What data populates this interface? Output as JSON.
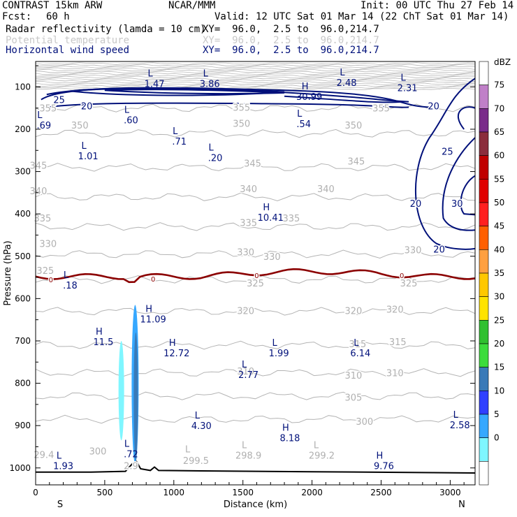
{
  "header": {
    "model": "CONTRAST 15km ARW",
    "org": "NCAR/MMM",
    "init": "Init: 00 UTC Thu 27 Feb 14",
    "fcst_label": "Fcst:",
    "fcst_value": "60 h",
    "valid": "Valid: 12 UTC Sat 01 Mar 14 (22 ChT Sat 01 Mar 14)",
    "fields": [
      {
        "name": "Radar reflectivity (lamda = 10 cm)",
        "xy": "XY=  96.0,  2.5 to  96.0,214.7"
      },
      {
        "name": "Potential temperature",
        "xy": "XY=  96.0,  2.5 to  96.0,214.7"
      },
      {
        "name": "Horizontal wind speed",
        "xy": "XY=  96.0,  2.5 to  96.0,214.7"
      }
    ]
  },
  "chart_data": {
    "type": "cross-section",
    "xlabel": "Distance (km)",
    "ylabel": "Pressure (hPa)",
    "x_ticks": [
      0,
      500,
      1000,
      1500,
      2000,
      2500,
      3000
    ],
    "y_ticks": [
      100,
      200,
      300,
      400,
      500,
      600,
      700,
      800,
      900,
      1000
    ],
    "xlim": [
      0,
      3180
    ],
    "ylim": [
      1040,
      40
    ],
    "x_end_labels": {
      "left": "S",
      "right": "N"
    },
    "theta_levels": [
      {
        "value": 355,
        "p": 150
      },
      {
        "value": 350,
        "p": 210
      },
      {
        "value": 345,
        "p": 290
      },
      {
        "value": 340,
        "p": 360
      },
      {
        "value": 335,
        "p": 430
      },
      {
        "value": 330,
        "p": 495
      },
      {
        "value": 325,
        "p": 555
      },
      {
        "value": 320,
        "p": 630
      },
      {
        "value": 315,
        "p": 710
      },
      {
        "value": 310,
        "p": 775
      },
      {
        "value": 305,
        "p": 830
      },
      {
        "value": 300,
        "p": 885
      }
    ],
    "theta_labels": [
      {
        "text": "355",
        "x": 1490,
        "p": 148
      },
      {
        "text": "355",
        "x": 2500,
        "p": 150
      },
      {
        "text": "355",
        "x": 90,
        "p": 150
      },
      {
        "text": "350",
        "x": 320,
        "p": 190
      },
      {
        "text": "350",
        "x": 1490,
        "p": 186
      },
      {
        "text": "350",
        "x": 2300,
        "p": 190
      },
      {
        "text": "345",
        "x": 20,
        "p": 285
      },
      {
        "text": "345",
        "x": 1570,
        "p": 280
      },
      {
        "text": "345",
        "x": 2320,
        "p": 275
      },
      {
        "text": "340",
        "x": 20,
        "p": 345
      },
      {
        "text": "340",
        "x": 1540,
        "p": 340
      },
      {
        "text": "340",
        "x": 2100,
        "p": 340
      },
      {
        "text": "335",
        "x": 50,
        "p": 410
      },
      {
        "text": "335",
        "x": 1540,
        "p": 420
      },
      {
        "text": "335",
        "x": 1850,
        "p": 410
      },
      {
        "text": "330",
        "x": 90,
        "p": 470
      },
      {
        "text": "330",
        "x": 1520,
        "p": 490
      },
      {
        "text": "330",
        "x": 1710,
        "p": 500
      },
      {
        "text": "330",
        "x": 2730,
        "p": 485
      },
      {
        "text": "325",
        "x": 70,
        "p": 533
      },
      {
        "text": "325",
        "x": 1590,
        "p": 563
      },
      {
        "text": "325",
        "x": 2700,
        "p": 563
      },
      {
        "text": "320",
        "x": 1520,
        "p": 628
      },
      {
        "text": "320",
        "x": 2300,
        "p": 628
      },
      {
        "text": "320",
        "x": 2600,
        "p": 625
      },
      {
        "text": "315",
        "x": 2330,
        "p": 707
      },
      {
        "text": "315",
        "x": 2620,
        "p": 702
      },
      {
        "text": "310",
        "x": 1520,
        "p": 771
      },
      {
        "text": "310",
        "x": 2300,
        "p": 781
      },
      {
        "text": "310",
        "x": 2600,
        "p": 775
      },
      {
        "text": "305",
        "x": 2300,
        "p": 833
      },
      {
        "text": "300",
        "x": 450,
        "p": 960
      },
      {
        "text": "300",
        "x": 2380,
        "p": 890
      },
      {
        "text": "298.9",
        "x": 1540,
        "p": 970
      },
      {
        "text": "299.2",
        "x": 2070,
        "p": 970
      },
      {
        "text": "299.5",
        "x": 1160,
        "p": 982
      },
      {
        "text": "29.4",
        "x": 60,
        "p": 968
      },
      {
        "text": "2.9",
        "x": 690,
        "p": 995
      }
    ],
    "theta_extremes": [
      {
        "text": "L",
        "x": 1100,
        "p": 955
      },
      {
        "text": "L",
        "x": 1510,
        "p": 945
      },
      {
        "text": "L",
        "x": 2030,
        "p": 945
      }
    ],
    "wind_contours": [
      20,
      25,
      30
    ],
    "wind_labels": [
      {
        "text": "25",
        "x": 170,
        "p": 130
      },
      {
        "text": "20",
        "x": 370,
        "p": 145
      },
      {
        "text": "20",
        "x": 2880,
        "p": 145
      },
      {
        "text": "25",
        "x": 2980,
        "p": 252
      },
      {
        "text": "20",
        "x": 2750,
        "p": 375
      },
      {
        "text": "30",
        "x": 3050,
        "p": 375
      },
      {
        "text": "20",
        "x": 2920,
        "p": 483
      }
    ],
    "freezing_level": {
      "label": "0",
      "p_mean": 548
    },
    "freezing_labels": [
      {
        "text": "0",
        "x": 110,
        "p": 555
      },
      {
        "text": "0",
        "x": 850,
        "p": 553
      },
      {
        "text": "0",
        "x": 1600,
        "p": 545
      },
      {
        "text": "0",
        "x": 2650,
        "p": 545
      }
    ],
    "extremes": [
      {
        "type": "L",
        "value": "1.47",
        "x": 860,
        "p": 82
      },
      {
        "type": "L",
        "value": "3.86",
        "x": 1260,
        "p": 82
      },
      {
        "type": "L",
        "value": "2.48",
        "x": 2250,
        "p": 80
      },
      {
        "type": "L",
        "value": "2.31",
        "x": 2690,
        "p": 92
      },
      {
        "type": "H",
        "value": "30.99",
        "x": 1980,
        "p": 113
      },
      {
        "type": "L",
        "value": ".69",
        "x": 60,
        "p": 180
      },
      {
        "type": "L",
        "value": ".60",
        "x": 690,
        "p": 168
      },
      {
        "type": "L",
        "value": ".54",
        "x": 1940,
        "p": 177
      },
      {
        "type": "L",
        "value": ".71",
        "x": 1040,
        "p": 218
      },
      {
        "type": "L",
        "value": "1.01",
        "x": 380,
        "p": 253
      },
      {
        "type": "L",
        "value": ".20",
        "x": 1300,
        "p": 257
      },
      {
        "type": "H",
        "value": "10.41",
        "x": 1700,
        "p": 398
      },
      {
        "type": "L",
        "value": ".18",
        "x": 250,
        "p": 558
      },
      {
        "type": "H",
        "value": "11.09",
        "x": 850,
        "p": 638
      },
      {
        "type": "H",
        "value": "11.5",
        "x": 490,
        "p": 692
      },
      {
        "type": "H",
        "value": "12.72",
        "x": 1020,
        "p": 718
      },
      {
        "type": "L",
        "value": "1.99",
        "x": 1760,
        "p": 718
      },
      {
        "type": "L",
        "value": "6.14",
        "x": 2350,
        "p": 718
      },
      {
        "type": "L",
        "value": "2.77",
        "x": 1540,
        "p": 769
      },
      {
        "type": "L",
        "value": "4.30",
        "x": 1200,
        "p": 890
      },
      {
        "type": "H",
        "value": "8.18",
        "x": 1840,
        "p": 919
      },
      {
        "type": "L",
        "value": "2.58",
        "x": 3070,
        "p": 888
      },
      {
        "type": "L",
        "value": ".72",
        "x": 690,
        "p": 957
      },
      {
        "type": "L",
        "value": "1.93",
        "x": 200,
        "p": 985
      },
      {
        "type": "H",
        "value": "9.76",
        "x": 2520,
        "p": 985
      }
    ],
    "surface_pressure": [
      {
        "x": 0,
        "p": 1010
      },
      {
        "x": 400,
        "p": 1010
      },
      {
        "x": 650,
        "p": 1008
      },
      {
        "x": 700,
        "p": 990
      },
      {
        "x": 730,
        "p": 985
      },
      {
        "x": 760,
        "p": 1002
      },
      {
        "x": 830,
        "p": 1006
      },
      {
        "x": 860,
        "p": 998
      },
      {
        "x": 890,
        "p": 1006
      },
      {
        "x": 1200,
        "p": 1007
      },
      {
        "x": 2000,
        "p": 1009
      },
      {
        "x": 3180,
        "p": 1012
      }
    ],
    "reflectivity_cells": [
      {
        "x_center": 620,
        "p_top": 700,
        "p_bottom": 935,
        "dBZ": 5
      },
      {
        "x_center": 720,
        "p_top": 615,
        "p_bottom": 990,
        "dBZ": 10
      },
      {
        "x_center": 725,
        "p_top": 680,
        "p_bottom": 985,
        "dBZ": 20
      }
    ],
    "colorbar": {
      "title": "dBZ",
      "levels": [
        75,
        70,
        65,
        60,
        55,
        50,
        45,
        40,
        35,
        30,
        25,
        20,
        15,
        10,
        5,
        0
      ],
      "colors": [
        "#ffffff",
        "#c080c8",
        "#7a2c8a",
        "#8b2d3c",
        "#c00000",
        "#e00000",
        "#ff2020",
        "#ff6000",
        "#ffa040",
        "#ffc800",
        "#ffe300",
        "#30c030",
        "#3cdc3c",
        "#3a7ab8",
        "#3040ff",
        "#36a8ff",
        "#7ff6ff",
        "#ffffff"
      ]
    }
  }
}
